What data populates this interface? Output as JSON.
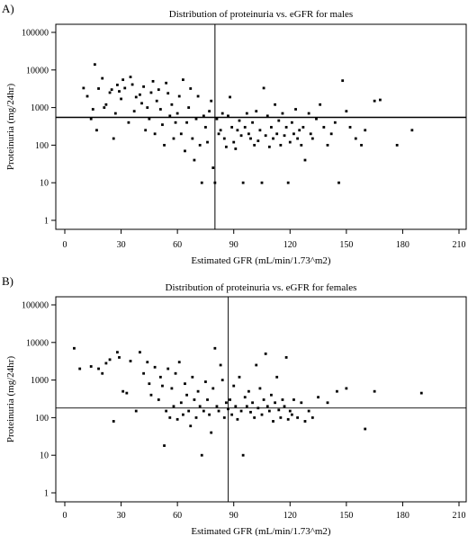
{
  "chart_data": [
    {
      "type": "scatter",
      "panel_label": "A)",
      "title": "Distribution of proteinuria vs. eGFR for males",
      "xlabel": "Estimated GFR (mL/min/1.73^m2)",
      "ylabel": "Proteinuria (mg/24hr)",
      "xlim": [
        0,
        210
      ],
      "x_ticks": [
        0,
        30,
        60,
        90,
        120,
        150,
        180,
        210
      ],
      "ylim": [
        1,
        100000
      ],
      "y_scale": "log",
      "y_ticks": [
        1,
        10,
        100,
        1000,
        10000,
        100000
      ],
      "reference_lines": {
        "x": 80,
        "y": 550
      },
      "grid": false,
      "points": [
        [
          10,
          3300
        ],
        [
          12,
          2000
        ],
        [
          14,
          500
        ],
        [
          15,
          900
        ],
        [
          16,
          14000
        ],
        [
          17,
          250
        ],
        [
          18,
          3200
        ],
        [
          20,
          6000
        ],
        [
          21,
          1000
        ],
        [
          22,
          1200
        ],
        [
          24,
          2500
        ],
        [
          25,
          3000
        ],
        [
          26,
          150
        ],
        [
          27,
          700
        ],
        [
          28,
          4000
        ],
        [
          29,
          2700
        ],
        [
          30,
          1700
        ],
        [
          31,
          5500
        ],
        [
          32,
          3300
        ],
        [
          34,
          400
        ],
        [
          35,
          6500
        ],
        [
          36,
          4100
        ],
        [
          37,
          800
        ],
        [
          38,
          1900
        ],
        [
          40,
          2200
        ],
        [
          41,
          1300
        ],
        [
          42,
          3600
        ],
        [
          43,
          250
        ],
        [
          44,
          1000
        ],
        [
          45,
          500
        ],
        [
          46,
          2500
        ],
        [
          47,
          5000
        ],
        [
          48,
          200
        ],
        [
          49,
          1500
        ],
        [
          50,
          3000
        ],
        [
          51,
          900
        ],
        [
          52,
          350
        ],
        [
          53,
          100
        ],
        [
          54,
          4500
        ],
        [
          55,
          2400
        ],
        [
          56,
          600
        ],
        [
          57,
          1200
        ],
        [
          58,
          150
        ],
        [
          59,
          400
        ],
        [
          60,
          700
        ],
        [
          61,
          2000
        ],
        [
          62,
          200
        ],
        [
          63,
          5500
        ],
        [
          64,
          70
        ],
        [
          65,
          400
        ],
        [
          66,
          1000
        ],
        [
          67,
          3200
        ],
        [
          68,
          150
        ],
        [
          69,
          40
        ],
        [
          70,
          500
        ],
        [
          71,
          2000
        ],
        [
          72,
          100
        ],
        [
          73,
          10
        ],
        [
          74,
          600
        ],
        [
          75,
          300
        ],
        [
          76,
          120
        ],
        [
          77,
          800
        ],
        [
          78,
          1500
        ],
        [
          79,
          25
        ],
        [
          80,
          10
        ],
        [
          81,
          500
        ],
        [
          82,
          200
        ],
        [
          83,
          250
        ],
        [
          84,
          700
        ],
        [
          85,
          150
        ],
        [
          86,
          90
        ],
        [
          87,
          600
        ],
        [
          88,
          1900
        ],
        [
          89,
          300
        ],
        [
          90,
          120
        ],
        [
          91,
          80
        ],
        [
          92,
          250
        ],
        [
          93,
          450
        ],
        [
          94,
          180
        ],
        [
          95,
          10
        ],
        [
          96,
          300
        ],
        [
          97,
          700
        ],
        [
          98,
          200
        ],
        [
          99,
          150
        ],
        [
          100,
          400
        ],
        [
          101,
          100
        ],
        [
          102,
          800
        ],
        [
          103,
          130
        ],
        [
          104,
          250
        ],
        [
          105,
          10
        ],
        [
          106,
          3300
        ],
        [
          107,
          180
        ],
        [
          108,
          600
        ],
        [
          109,
          90
        ],
        [
          110,
          300
        ],
        [
          111,
          150
        ],
        [
          112,
          1200
        ],
        [
          113,
          200
        ],
        [
          114,
          450
        ],
        [
          115,
          100
        ],
        [
          116,
          700
        ],
        [
          117,
          180
        ],
        [
          118,
          300
        ],
        [
          119,
          10
        ],
        [
          120,
          120
        ],
        [
          121,
          400
        ],
        [
          122,
          200
        ],
        [
          123,
          900
        ],
        [
          124,
          150
        ],
        [
          125,
          250
        ],
        [
          126,
          100
        ],
        [
          127,
          300
        ],
        [
          128,
          40
        ],
        [
          130,
          700
        ],
        [
          131,
          200
        ],
        [
          132,
          150
        ],
        [
          134,
          500
        ],
        [
          136,
          1200
        ],
        [
          138,
          300
        ],
        [
          140,
          100
        ],
        [
          142,
          200
        ],
        [
          144,
          400
        ],
        [
          146,
          10
        ],
        [
          148,
          5200
        ],
        [
          150,
          800
        ],
        [
          152,
          300
        ],
        [
          155,
          150
        ],
        [
          158,
          100
        ],
        [
          160,
          250
        ],
        [
          165,
          1500
        ],
        [
          168,
          1600
        ],
        [
          177,
          100
        ],
        [
          185,
          250
        ]
      ]
    },
    {
      "type": "scatter",
      "panel_label": "B)",
      "title": "Distribution of proteinuria vs. eGFR for females",
      "xlabel": "Estimated GFR (mL/min/1.73^m2)",
      "ylabel": "Proteinuria (mg/24hr)",
      "xlim": [
        0,
        210
      ],
      "x_ticks": [
        0,
        30,
        60,
        90,
        120,
        150,
        180,
        210
      ],
      "ylim": [
        1,
        100000
      ],
      "y_scale": "log",
      "y_ticks": [
        1,
        10,
        100,
        1000,
        10000,
        100000
      ],
      "reference_lines": {
        "x": 87,
        "y": 180
      },
      "grid": false,
      "points": [
        [
          5,
          7000
        ],
        [
          8,
          2000
        ],
        [
          14,
          2300
        ],
        [
          18,
          2000
        ],
        [
          20,
          1500
        ],
        [
          22,
          2800
        ],
        [
          24,
          3500
        ],
        [
          26,
          80
        ],
        [
          28,
          5500
        ],
        [
          29,
          4000
        ],
        [
          31,
          500
        ],
        [
          33,
          450
        ],
        [
          35,
          3200
        ],
        [
          38,
          150
        ],
        [
          40,
          5500
        ],
        [
          42,
          1500
        ],
        [
          44,
          3000
        ],
        [
          45,
          800
        ],
        [
          46,
          400
        ],
        [
          48,
          2200
        ],
        [
          50,
          300
        ],
        [
          51,
          1200
        ],
        [
          52,
          700
        ],
        [
          53,
          18
        ],
        [
          54,
          150
        ],
        [
          55,
          2000
        ],
        [
          56,
          100
        ],
        [
          57,
          600
        ],
        [
          58,
          200
        ],
        [
          59,
          1500
        ],
        [
          60,
          90
        ],
        [
          61,
          3000
        ],
        [
          62,
          250
        ],
        [
          63,
          120
        ],
        [
          64,
          800
        ],
        [
          65,
          400
        ],
        [
          66,
          150
        ],
        [
          67,
          60
        ],
        [
          68,
          1200
        ],
        [
          69,
          300
        ],
        [
          70,
          100
        ],
        [
          71,
          500
        ],
        [
          72,
          200
        ],
        [
          73,
          10
        ],
        [
          74,
          150
        ],
        [
          75,
          900
        ],
        [
          76,
          300
        ],
        [
          77,
          120
        ],
        [
          78,
          40
        ],
        [
          79,
          600
        ],
        [
          80,
          7000
        ],
        [
          81,
          200
        ],
        [
          82,
          150
        ],
        [
          83,
          2500
        ],
        [
          84,
          1000
        ],
        [
          85,
          100
        ],
        [
          86,
          250
        ],
        [
          87,
          170
        ],
        [
          88,
          300
        ],
        [
          89,
          120
        ],
        [
          90,
          700
        ],
        [
          91,
          200
        ],
        [
          92,
          90
        ],
        [
          93,
          1200
        ],
        [
          94,
          150
        ],
        [
          95,
          10
        ],
        [
          96,
          350
        ],
        [
          97,
          200
        ],
        [
          98,
          500
        ],
        [
          99,
          140
        ],
        [
          100,
          250
        ],
        [
          101,
          100
        ],
        [
          102,
          2500
        ],
        [
          103,
          180
        ],
        [
          104,
          600
        ],
        [
          105,
          120
        ],
        [
          106,
          300
        ],
        [
          107,
          5000
        ],
        [
          108,
          200
        ],
        [
          109,
          150
        ],
        [
          110,
          400
        ],
        [
          111,
          80
        ],
        [
          112,
          250
        ],
        [
          113,
          1200
        ],
        [
          114,
          160
        ],
        [
          115,
          100
        ],
        [
          116,
          300
        ],
        [
          117,
          200
        ],
        [
          118,
          4000
        ],
        [
          119,
          90
        ],
        [
          120,
          150
        ],
        [
          121,
          120
        ],
        [
          122,
          300
        ],
        [
          124,
          100
        ],
        [
          126,
          250
        ],
        [
          128,
          80
        ],
        [
          130,
          150
        ],
        [
          132,
          100
        ],
        [
          135,
          350
        ],
        [
          140,
          250
        ],
        [
          145,
          500
        ],
        [
          150,
          600
        ],
        [
          160,
          50
        ],
        [
          165,
          500
        ],
        [
          190,
          450
        ]
      ]
    }
  ]
}
